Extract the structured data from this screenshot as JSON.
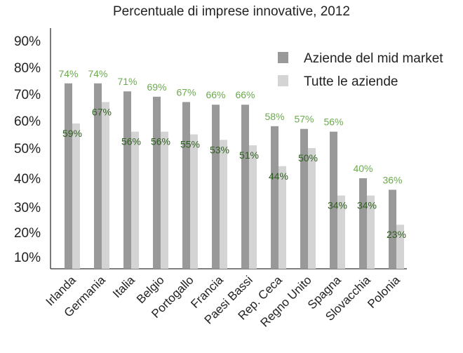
{
  "chart_data": {
    "type": "bar",
    "title": "Percentuale di imprese innovative, 2012",
    "xlabel": "",
    "ylabel": "",
    "yticks": [
      "10%",
      "20%",
      "30%",
      "40%",
      "50%",
      "60%",
      "70%",
      "80%",
      "90%"
    ],
    "categories": [
      "Irlanda",
      "Germania",
      "Italia",
      "Belgio",
      "Portogallo",
      "Francia",
      "Paesi Bassi",
      "Rep. Ceca",
      "Regno Unito",
      "Spagna",
      "Slovacchia",
      "Polonia"
    ],
    "series": [
      {
        "name": "Aziende del mid market",
        "color": "#999999",
        "label_color": "#6aaa4b",
        "values": [
          74,
          74,
          71,
          69,
          67,
          66,
          66,
          58,
          57,
          56,
          40,
          36
        ],
        "labels": [
          "74%",
          "74%",
          "71%",
          "69%",
          "67%",
          "66%",
          "66%",
          "58%",
          "57%",
          "56%",
          "40%",
          "36%"
        ]
      },
      {
        "name": "Tutte le aziende",
        "color": "#d4d4d4",
        "label_color": "#2e5d1e",
        "values": [
          59,
          67,
          56,
          56,
          55,
          53,
          51,
          44,
          50,
          34,
          34,
          23
        ],
        "labels": [
          "59%",
          "67%",
          "56%",
          "56%",
          "55%",
          "53%",
          "51%",
          "44%",
          "50%",
          "34%",
          "34%",
          "23%"
        ]
      }
    ],
    "legend_position": "top-right",
    "grid": false
  }
}
